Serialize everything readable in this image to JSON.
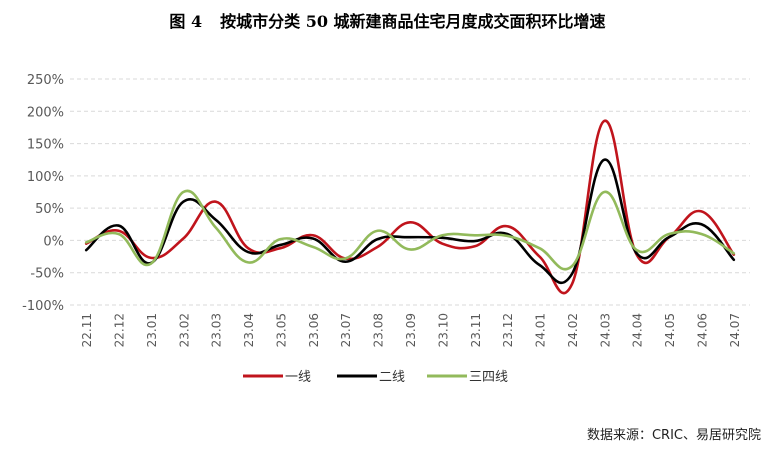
{
  "title_prefix": "图 4",
  "title_text": "按城市分类 50 城新建商品住宅月度成交面积环比增速",
  "source": "数据来源：CRIC、易居研究院",
  "chart_data": {
    "type": "line",
    "title": "按城市分类 50 城新建商品住宅月度成交面积环比增速",
    "xlabel": "",
    "ylabel": "",
    "ylim": [
      -100,
      250
    ],
    "yticks": [
      -100,
      -50,
      0,
      50,
      100,
      150,
      200,
      250
    ],
    "ytick_labels": [
      "-100%",
      "-50%",
      "0%",
      "50%",
      "100%",
      "150%",
      "200%",
      "250%"
    ],
    "grid": true,
    "legend_position": "bottom",
    "categories": [
      "22.11",
      "22.12",
      "23.01",
      "23.02",
      "23.03",
      "23.04",
      "23.05",
      "23.06",
      "23.07",
      "23.08",
      "23.09",
      "23.10",
      "23.11",
      "23.12",
      "24.01",
      "24.02",
      "24.03",
      "24.04",
      "24.05",
      "24.06",
      "24.07"
    ],
    "series": [
      {
        "name": "一线",
        "color": "#C0141C",
        "values": [
          -5,
          15,
          -27,
          3,
          60,
          -12,
          -12,
          8,
          -28,
          -10,
          28,
          -5,
          -9,
          22,
          -25,
          -68,
          185,
          -22,
          5,
          45,
          -22
        ]
      },
      {
        "name": "二线",
        "color": "#000000",
        "values": [
          -15,
          23,
          -35,
          60,
          32,
          -18,
          -7,
          3,
          -33,
          2,
          5,
          4,
          -1,
          10,
          -38,
          -52,
          125,
          -20,
          5,
          25,
          -30
        ]
      },
      {
        "name": "三四线",
        "color": "#92BA5B",
        "values": [
          -3,
          10,
          -36,
          75,
          20,
          -34,
          2,
          -10,
          -28,
          15,
          -14,
          8,
          8,
          7,
          -12,
          -40,
          75,
          -15,
          10,
          10,
          -20
        ]
      }
    ]
  }
}
